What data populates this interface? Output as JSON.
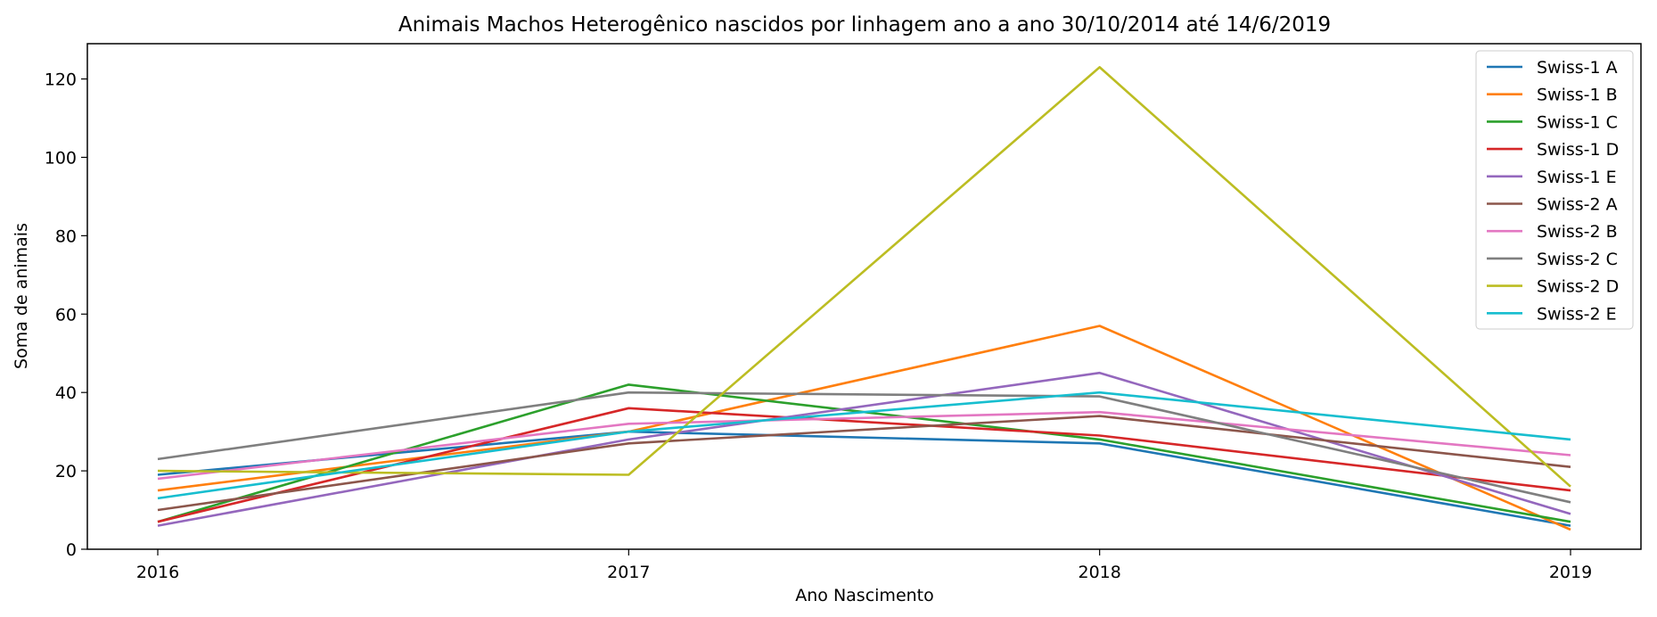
{
  "chart_data": {
    "type": "line",
    "title": "Animais Machos Heterogênico nascidos por linhagem ano a ano 30/10/2014 até 14/6/2019",
    "xlabel": "Ano Nascimento",
    "ylabel": "Soma de animais",
    "x": [
      2016,
      2017,
      2018,
      2019
    ],
    "x_tick_labels": [
      "2016",
      "2017",
      "2018",
      "2019"
    ],
    "ylim": [
      0,
      129
    ],
    "y_ticks": [
      0,
      20,
      40,
      60,
      80,
      100,
      120
    ],
    "grid": false,
    "legend_position": "top-right",
    "series": [
      {
        "name": "Swiss-1 A",
        "color": "#1f77b4",
        "values": [
          19,
          30,
          27,
          6
        ]
      },
      {
        "name": "Swiss-1 B",
        "color": "#ff7f0e",
        "values": [
          15,
          30,
          57,
          5
        ]
      },
      {
        "name": "Swiss-1 C",
        "color": "#2ca02c",
        "values": [
          7,
          42,
          28,
          7
        ]
      },
      {
        "name": "Swiss-1 D",
        "color": "#d62728",
        "values": [
          7,
          36,
          29,
          15
        ]
      },
      {
        "name": "Swiss-1 E",
        "color": "#9467bd",
        "values": [
          6,
          28,
          45,
          9
        ]
      },
      {
        "name": "Swiss-2 A",
        "color": "#8c564b",
        "values": [
          10,
          27,
          34,
          21
        ]
      },
      {
        "name": "Swiss-2 B",
        "color": "#e377c2",
        "values": [
          18,
          32,
          35,
          24
        ]
      },
      {
        "name": "Swiss-2 C",
        "color": "#7f7f7f",
        "values": [
          23,
          40,
          39,
          12
        ]
      },
      {
        "name": "Swiss-2 D",
        "color": "#bcbd22",
        "values": [
          20,
          19,
          123,
          16
        ]
      },
      {
        "name": "Swiss-2 E",
        "color": "#17becf",
        "values": [
          13,
          30,
          40,
          28
        ]
      }
    ]
  }
}
